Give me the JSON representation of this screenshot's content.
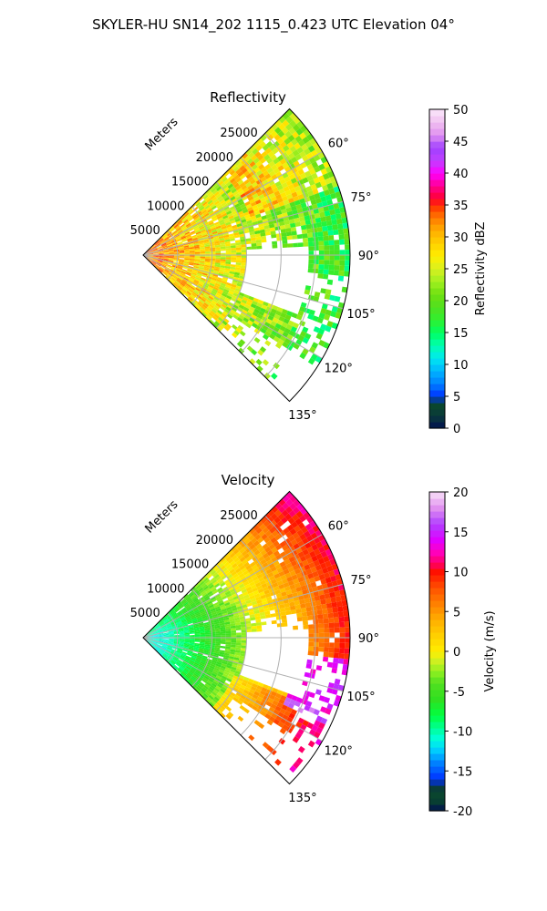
{
  "figure": {
    "suptitle": "SKYLER-HU  SN14_202  1115_0.423 UTC Elevation 04°"
  },
  "chart_data": [
    {
      "type": "heatmap",
      "subtype": "polar-sector (PPI)",
      "title": "Reflectivity",
      "radial_label": "Meters",
      "r_max_m": 30000,
      "r_ticks": [
        "5000",
        "10000",
        "15000",
        "20000",
        "25000"
      ],
      "r_tick_values": [
        5000,
        10000,
        15000,
        20000,
        25000
      ],
      "azimuth_range_deg": [
        45,
        135
      ],
      "azimuth_ticks": [
        "60°",
        "75°",
        "90°",
        "105°",
        "120°",
        "135°"
      ],
      "azimuth_tick_values": [
        60,
        75,
        90,
        105,
        120,
        135
      ],
      "grid": true,
      "colorbar": {
        "label": "Reflectivity dBZ",
        "range": [
          0,
          50
        ],
        "ticks": [
          "0",
          "5",
          "10",
          "15",
          "20",
          "25",
          "30",
          "35",
          "40",
          "45",
          "50"
        ],
        "tick_values": [
          0,
          5,
          10,
          15,
          20,
          25,
          30,
          35,
          40,
          45,
          50
        ]
      },
      "field_description": {
        "near_range_strongest_dbz": 35,
        "typical_dbz": 22,
        "echo_free_region_azimuth_deg": [
          85,
          110
        ],
        "echo_free_region_range_m": [
          12000,
          24000
        ]
      }
    },
    {
      "type": "heatmap",
      "subtype": "polar-sector (PPI)",
      "title": "Velocity",
      "radial_label": "Meters",
      "r_max_m": 30000,
      "r_ticks": [
        "5000",
        "10000",
        "15000",
        "20000",
        "25000"
      ],
      "r_tick_values": [
        5000,
        10000,
        15000,
        20000,
        25000
      ],
      "azimuth_range_deg": [
        45,
        135
      ],
      "azimuth_ticks": [
        "60°",
        "75°",
        "90°",
        "105°",
        "120°",
        "135°"
      ],
      "azimuth_tick_values": [
        60,
        75,
        90,
        105,
        120,
        135
      ],
      "grid": true,
      "colorbar": {
        "label": "Velocity (m/s)",
        "range": [
          -20,
          20
        ],
        "ticks": [
          "-20",
          "-15",
          "-10",
          "-5",
          "0",
          "5",
          "10",
          "15",
          "20"
        ],
        "tick_values": [
          -20,
          -15,
          -10,
          -5,
          0,
          5,
          10,
          15,
          20
        ]
      },
      "field_description": {
        "near_range_velocity_ms": -11,
        "mid_range_velocity_ms": -5,
        "far_range_velocity_ms": 8,
        "max_velocity_ms": 14
      }
    }
  ],
  "colormaps": {
    "reflectivity": [
      [
        0,
        "#001050"
      ],
      [
        2,
        "#0a3a3a"
      ],
      [
        4,
        "#0a4a2a"
      ],
      [
        5,
        "#0030ff"
      ],
      [
        7,
        "#0080ff"
      ],
      [
        9,
        "#00b4ff"
      ],
      [
        11,
        "#00e8f0"
      ],
      [
        13,
        "#00ffb0"
      ],
      [
        15,
        "#00ff60"
      ],
      [
        17,
        "#30f030"
      ],
      [
        19,
        "#50e020"
      ],
      [
        21,
        "#6ee010"
      ],
      [
        23,
        "#a0f020"
      ],
      [
        25,
        "#d8f020"
      ],
      [
        27,
        "#ffee00"
      ],
      [
        29,
        "#ffd000"
      ],
      [
        31,
        "#ffae00"
      ],
      [
        33,
        "#ff7a00"
      ],
      [
        35,
        "#ff3000"
      ],
      [
        36,
        "#ff0030"
      ],
      [
        38,
        "#ff0090"
      ],
      [
        40,
        "#ff00ff"
      ],
      [
        42,
        "#c040ff"
      ],
      [
        44,
        "#a040ff"
      ],
      [
        46,
        "#e090f0"
      ],
      [
        48,
        "#f0c0f0"
      ],
      [
        50,
        "#fbe8fb"
      ]
    ],
    "velocity": [
      [
        -20,
        "#001050"
      ],
      [
        -18.5,
        "#0a4a2a"
      ],
      [
        -17,
        "#0a3a3a"
      ],
      [
        -16,
        "#0030ff"
      ],
      [
        -14,
        "#0080ff"
      ],
      [
        -12.5,
        "#00c8ff"
      ],
      [
        -11,
        "#00ffe0"
      ],
      [
        -9.5,
        "#00ff90"
      ],
      [
        -8,
        "#00ff40"
      ],
      [
        -6,
        "#30e020"
      ],
      [
        -4,
        "#50e020"
      ],
      [
        -2.5,
        "#90f020"
      ],
      [
        -1,
        "#d8f020"
      ],
      [
        0,
        "#ffee00"
      ],
      [
        2,
        "#ffd000"
      ],
      [
        4,
        "#ffae00"
      ],
      [
        6,
        "#ff8000"
      ],
      [
        8,
        "#ff5000"
      ],
      [
        10,
        "#ff1000"
      ],
      [
        11,
        "#ff0060"
      ],
      [
        12.5,
        "#ff00c0"
      ],
      [
        14,
        "#e000ff"
      ],
      [
        16,
        "#b040ff"
      ],
      [
        18,
        "#e090f0"
      ],
      [
        20,
        "#f8e0f8"
      ]
    ]
  }
}
